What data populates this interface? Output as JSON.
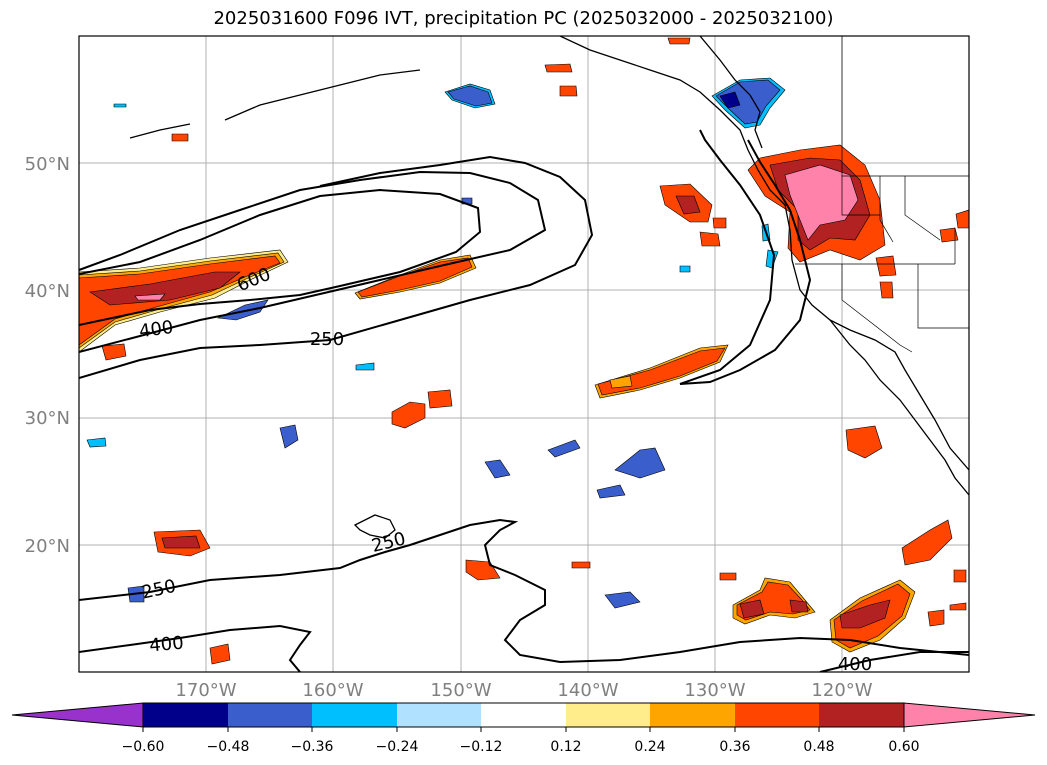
{
  "title": "2025031600 F096 IVT, precipitation PC (2025032000 - 2025032100)",
  "map": {
    "lat_labels": [
      "50°N",
      "40°N",
      "30°N",
      "20°N"
    ],
    "lon_labels": [
      "170°W",
      "160°W",
      "150°W",
      "140°W",
      "130°W",
      "120°W"
    ],
    "contour_labels": [
      "600",
      "400",
      "250",
      "250",
      "250",
      "400",
      "400"
    ]
  },
  "colorbar": {
    "ticks": [
      "−0.60",
      "−0.48",
      "−0.36",
      "−0.24",
      "−0.12",
      "0.12",
      "0.24",
      "0.36",
      "0.48",
      "0.60"
    ],
    "colors": [
      "#9932cc",
      "#00008b",
      "#3a5fcd",
      "#00bfff",
      "#b0e2ff",
      "#ffffff",
      "#ffec8b",
      "#ffa500",
      "#ff4500",
      "#b22222",
      "#ff82ab"
    ]
  }
}
